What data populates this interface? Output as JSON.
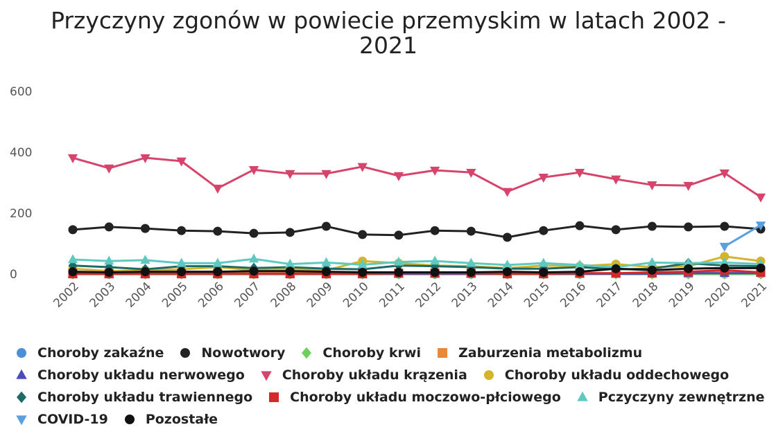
{
  "chart_data": {
    "type": "line",
    "title": "Przyczyny zgonów w powiecie przemyskim w latach 2002 - 2021",
    "categories": [
      "2002",
      "2003",
      "2004",
      "2005",
      "2006",
      "2007",
      "2008",
      "2009",
      "2010",
      "2011",
      "2012",
      "2013",
      "2014",
      "2015",
      "2016",
      "2017",
      "2018",
      "2019",
      "2020",
      "2021"
    ],
    "ylim": [
      0,
      600
    ],
    "yticks": [
      0,
      200,
      400,
      600
    ],
    "grid": false,
    "series": [
      {
        "name": "Choroby zakaźne",
        "color": "#4a90d9",
        "marker": "circle",
        "values": [
          2,
          2,
          2,
          2,
          2,
          2,
          2,
          2,
          2,
          2,
          2,
          2,
          2,
          2,
          2,
          5,
          3,
          3,
          3,
          3
        ]
      },
      {
        "name": "Nowotwory",
        "color": "#222222",
        "marker": "circle",
        "values": [
          148,
          157,
          152,
          145,
          143,
          136,
          139,
          159,
          132,
          130,
          145,
          143,
          123,
          145,
          161,
          148,
          159,
          157,
          159,
          150
        ]
      },
      {
        "name": "Choroby krwi",
        "color": "#6fcf5b",
        "marker": "diamond",
        "values": [
          2,
          2,
          2,
          2,
          2,
          2,
          2,
          2,
          2,
          2,
          2,
          2,
          2,
          2,
          2,
          2,
          2,
          2,
          2,
          2
        ]
      },
      {
        "name": "Zaburzenia metabolizmu",
        "color": "#e8883a",
        "marker": "square",
        "values": [
          5,
          5,
          5,
          5,
          5,
          5,
          5,
          5,
          5,
          5,
          5,
          5,
          5,
          5,
          5,
          5,
          5,
          5,
          8,
          8
        ]
      },
      {
        "name": "Choroby układu nerwowego",
        "color": "#4b4bbf",
        "marker": "triangle-up",
        "values": [
          3,
          3,
          3,
          3,
          3,
          3,
          3,
          3,
          3,
          3,
          3,
          3,
          3,
          3,
          3,
          3,
          3,
          5,
          5,
          5
        ]
      },
      {
        "name": "Choroby układu krązenia",
        "color": "#d6446b",
        "marker": "triangle-down",
        "values": [
          384,
          350,
          384,
          373,
          284,
          345,
          332,
          332,
          355,
          325,
          343,
          336,
          273,
          320,
          336,
          314,
          295,
          293,
          334,
          255
        ]
      },
      {
        "name": "Choroby układu oddechowego",
        "color": "#d4b42a",
        "marker": "circle",
        "values": [
          20,
          12,
          15,
          18,
          25,
          15,
          18,
          15,
          45,
          38,
          30,
          28,
          22,
          30,
          28,
          35,
          25,
          28,
          60,
          45
        ]
      },
      {
        "name": "Choroby układu trawiennego",
        "color": "#1e6b66",
        "marker": "diamond",
        "values": [
          30,
          25,
          18,
          28,
          28,
          22,
          25,
          20,
          18,
          30,
          28,
          25,
          20,
          20,
          25,
          18,
          20,
          38,
          30,
          28
        ]
      },
      {
        "name": "Choroby układu moczowo-płciowego",
        "color": "#d62828",
        "marker": "square",
        "values": [
          3,
          3,
          3,
          3,
          3,
          3,
          3,
          3,
          3,
          5,
          5,
          5,
          3,
          3,
          5,
          5,
          8,
          10,
          15,
          8
        ]
      },
      {
        "name": "Pczyczyny zewnętrzne",
        "color": "#5ec9c0",
        "marker": "triangle-up",
        "values": [
          50,
          45,
          48,
          38,
          38,
          52,
          35,
          40,
          33,
          42,
          45,
          38,
          32,
          38,
          32,
          25,
          40,
          38,
          40,
          35
        ]
      },
      {
        "name": "COVID-19",
        "color": "#5aa0e0",
        "marker": "triangle-down",
        "values": [
          null,
          null,
          null,
          null,
          null,
          null,
          null,
          null,
          null,
          null,
          null,
          null,
          null,
          null,
          null,
          null,
          null,
          null,
          93,
          163
        ]
      },
      {
        "name": "Pozostałe",
        "color": "#111111",
        "marker": "circle",
        "values": [
          10,
          8,
          10,
          10,
          10,
          12,
          12,
          10,
          8,
          8,
          8,
          8,
          10,
          8,
          10,
          20,
          15,
          20,
          22,
          22
        ]
      }
    ]
  }
}
